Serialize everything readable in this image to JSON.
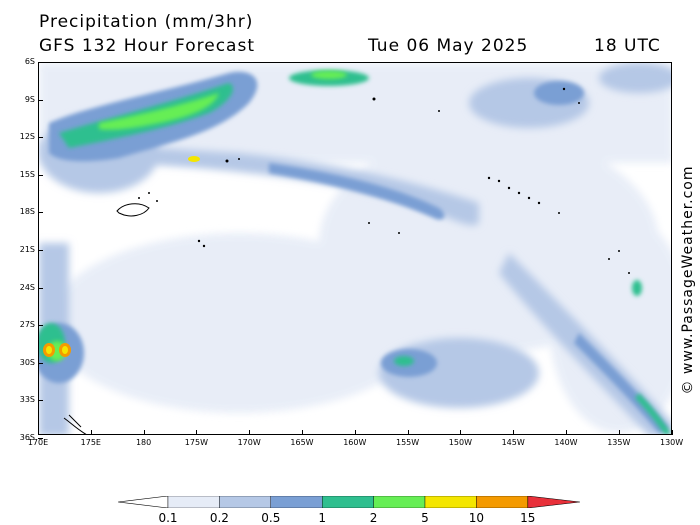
{
  "header": {
    "title": "Precipitation (mm/3hr)",
    "subtitle": "GFS 132 Hour Forecast",
    "date": "Tue 06 May 2025",
    "time": "18 UTC"
  },
  "watermark": "© www.PassageWeather.com",
  "map": {
    "lat_labels": [
      "6S",
      "9S",
      "12S",
      "15S",
      "18S",
      "21S",
      "24S",
      "27S",
      "30S",
      "33S",
      "36S"
    ],
    "lon_labels": [
      "170E",
      "175E",
      "180",
      "175W",
      "170W",
      "165W",
      "160W",
      "155W",
      "150W",
      "145W",
      "140W",
      "135W",
      "130W"
    ]
  },
  "legend": {
    "labels": [
      "0.1",
      "0.2",
      "0.5",
      "1",
      "2",
      "5",
      "10",
      "15"
    ],
    "colors": [
      "#ffffff",
      "#e6ecf7",
      "#b5c8e6",
      "#7a9fd4",
      "#2fbf8f",
      "#66ee55",
      "#f4e600",
      "#f49a00",
      "#e8303a"
    ]
  }
}
